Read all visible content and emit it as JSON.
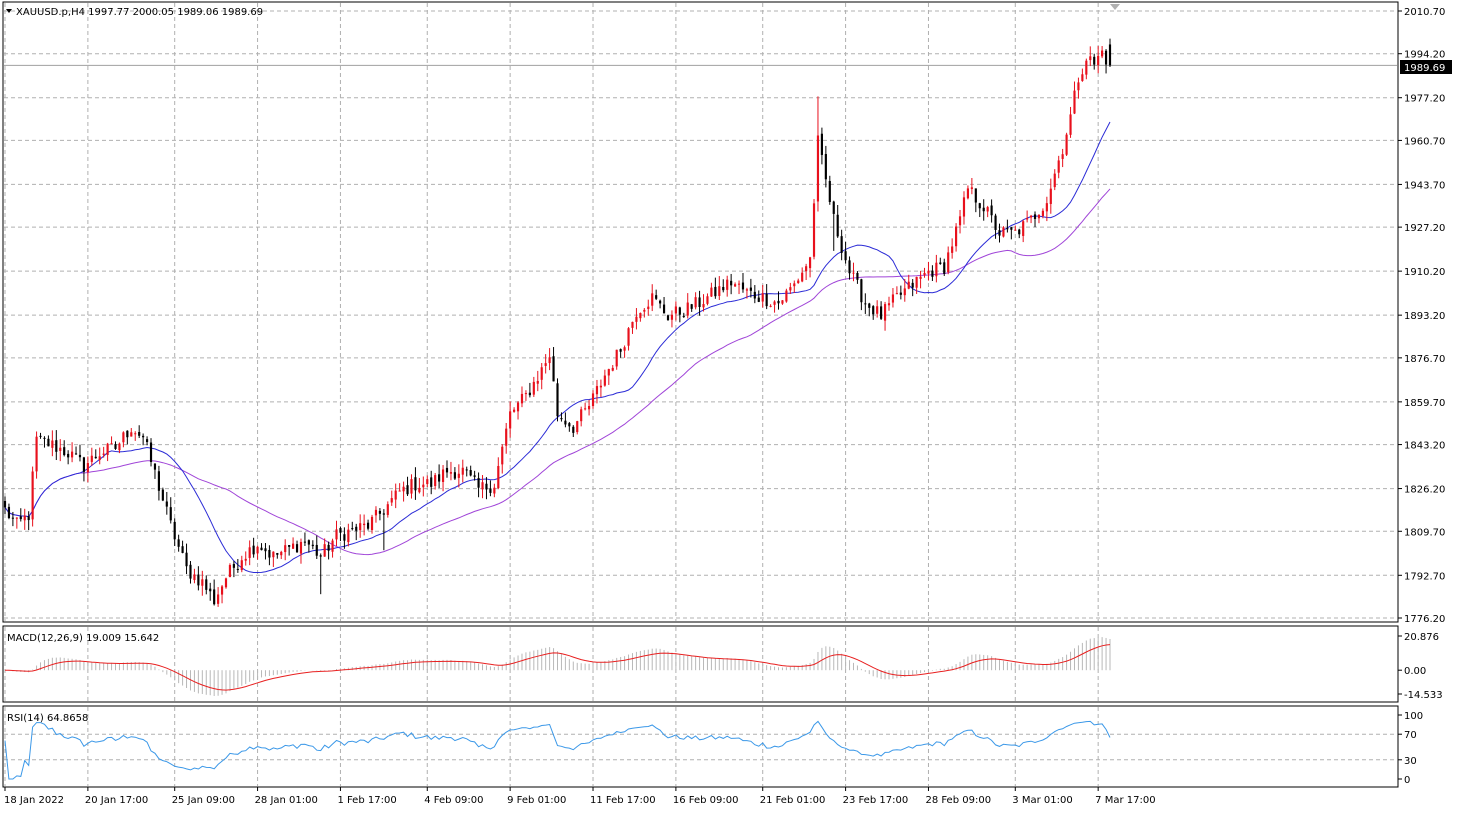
{
  "header": {
    "symbol_line": "XAUUSD.p,H4  1997.77 2000.05 1989.06 1989.69",
    "macd_label": "MACD(12,26,9) 19.009 15.642",
    "rsi_label": "RSI(14) 64.8658",
    "last_price": "1989.69"
  },
  "colors": {
    "bull": "#e8101c",
    "bear": "#000000",
    "ma_fast": "#2b2bd6",
    "ma_slow": "#a045d8",
    "macd_signal": "#e82020",
    "macd_hist": "#b8b8b8",
    "rsi": "#3b98e8"
  },
  "chart_data": [
    {
      "type": "candlestick",
      "title": "XAUUSD.p,H4  1997.77 2000.05 1989.06 1989.69",
      "ylim": [
        1776.2,
        2010.7
      ],
      "yticks": [
        "2010.70",
        "1994.20",
        "1977.20",
        "1960.70",
        "1943.70",
        "1927.20",
        "1910.20",
        "1893.20",
        "1876.70",
        "1859.70",
        "1843.20",
        "1826.20",
        "1809.70",
        "1792.70",
        "1776.20"
      ],
      "x_labels": [
        "18 Jan 2022",
        "20 Jan 17:00",
        "25 Jan 09:00",
        "28 Jan 01:00",
        "1 Feb 17:00",
        "4 Feb 09:00",
        "9 Feb 01:00",
        "11 Feb 17:00",
        "16 Feb 09:00",
        "21 Feb 01:00",
        "23 Feb 17:00",
        "28 Feb 09:00",
        "3 Mar 01:00",
        "7 Mar 17:00"
      ],
      "close_anchors": [
        [
          0,
          1818
        ],
        [
          3,
          1812
        ],
        [
          6,
          1816
        ],
        [
          8,
          1845
        ],
        [
          12,
          1843
        ],
        [
          16,
          1840
        ],
        [
          20,
          1835
        ],
        [
          24,
          1840
        ],
        [
          28,
          1842
        ],
        [
          32,
          1850
        ],
        [
          35,
          1846
        ],
        [
          38,
          1832
        ],
        [
          42,
          1812
        ],
        [
          46,
          1795
        ],
        [
          50,
          1790
        ],
        [
          53,
          1783
        ],
        [
          56,
          1792
        ],
        [
          60,
          1800
        ],
        [
          64,
          1805
        ],
        [
          68,
          1800
        ],
        [
          72,
          1803
        ],
        [
          76,
          1806
        ],
        [
          80,
          1800
        ],
        [
          84,
          1808
        ],
        [
          88,
          1810
        ],
        [
          92,
          1812
        ],
        [
          96,
          1818
        ],
        [
          100,
          1825
        ],
        [
          104,
          1828
        ],
        [
          108,
          1828
        ],
        [
          112,
          1833
        ],
        [
          116,
          1833
        ],
        [
          120,
          1826
        ],
        [
          124,
          1828
        ],
        [
          128,
          1855
        ],
        [
          132,
          1862
        ],
        [
          136,
          1872
        ],
        [
          138,
          1878
        ],
        [
          140,
          1855
        ],
        [
          144,
          1850
        ],
        [
          148,
          1858
        ],
        [
          152,
          1870
        ],
        [
          156,
          1880
        ],
        [
          160,
          1895
        ],
        [
          164,
          1900
        ],
        [
          168,
          1893
        ],
        [
          172,
          1895
        ],
        [
          176,
          1898
        ],
        [
          180,
          1902
        ],
        [
          184,
          1906
        ],
        [
          188,
          1902
        ],
        [
          192,
          1900
        ],
        [
          196,
          1898
        ],
        [
          200,
          1905
        ],
        [
          204,
          1915
        ],
        [
          206,
          1960
        ],
        [
          208,
          1945
        ],
        [
          210,
          1930
        ],
        [
          214,
          1910
        ],
        [
          218,
          1898
        ],
        [
          222,
          1893
        ],
        [
          226,
          1900
        ],
        [
          230,
          1905
        ],
        [
          234,
          1910
        ],
        [
          238,
          1912
        ],
        [
          242,
          1930
        ],
        [
          244,
          1942
        ],
        [
          248,
          1935
        ],
        [
          252,
          1925
        ],
        [
          256,
          1925
        ],
        [
          260,
          1930
        ],
        [
          264,
          1938
        ],
        [
          268,
          1958
        ],
        [
          270,
          1970
        ],
        [
          272,
          1985
        ],
        [
          274,
          1993
        ],
        [
          276,
          1990
        ],
        [
          278,
          1995
        ],
        [
          280,
          1989.69
        ]
      ],
      "last_price": 1989.69,
      "series": [
        {
          "name": "candles",
          "count": 281
        },
        {
          "name": "ma_fast"
        },
        {
          "name": "ma_slow"
        }
      ]
    },
    {
      "type": "histogram+line",
      "title": "MACD(12,26,9) 19.009 15.642",
      "ylim": [
        -14.533,
        20.876
      ],
      "yticks": [
        "20.876",
        "0.00",
        "-14.533"
      ],
      "series": [
        {
          "name": "MACD",
          "last": 19.009
        },
        {
          "name": "Signal",
          "last": 15.642
        }
      ]
    },
    {
      "type": "line",
      "title": "RSI(14) 64.8658",
      "ylim": [
        0,
        100
      ],
      "yticks": [
        "100",
        "70",
        "30",
        "0"
      ],
      "series": [
        {
          "name": "RSI",
          "last": 64.8658
        }
      ]
    }
  ]
}
